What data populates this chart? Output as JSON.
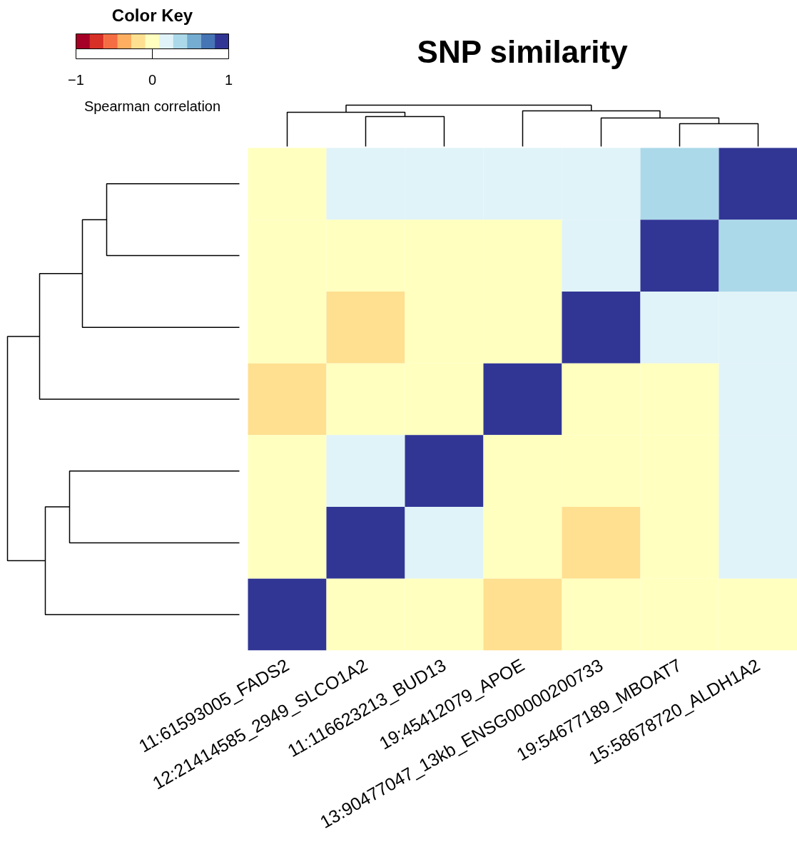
{
  "chart_data": {
    "type": "heatmap",
    "title": "SNP similarity",
    "legend_title": "Color Key",
    "clabel": "Spearman correlation",
    "categories": [
      "11:61593005_FADS2",
      "12:21414585_2949_SLCO1A2",
      "11:116623213_BUD13",
      "19:45412079_APOE",
      "13:90477047_13kb_ENSG00000200733",
      "19:54677189_MBOAT7",
      "15:58678720_ALDH1A2"
    ],
    "y_categories": [
      null,
      null,
      null,
      null,
      null,
      null,
      null
    ],
    "cells": [
      [
        0,
        0.2,
        0.2,
        0.2,
        0.2,
        0.4,
        1
      ],
      [
        0,
        0,
        0,
        0,
        0.2,
        1,
        0.4
      ],
      [
        0,
        -0.2,
        0,
        0,
        1,
        0.2,
        0.2
      ],
      [
        -0.2,
        0,
        0,
        1,
        0,
        0,
        0.2
      ],
      [
        0,
        0.2,
        1,
        0,
        0,
        0,
        0.2
      ],
      [
        0,
        1,
        0.2,
        0,
        -0.2,
        0,
        0.2
      ],
      [
        1,
        0,
        0,
        -0.2,
        0,
        0,
        0
      ]
    ],
    "clim": [
      -1,
      1
    ],
    "cticks": [
      -1,
      0,
      1
    ],
    "tick_labels": "x"
  }
}
